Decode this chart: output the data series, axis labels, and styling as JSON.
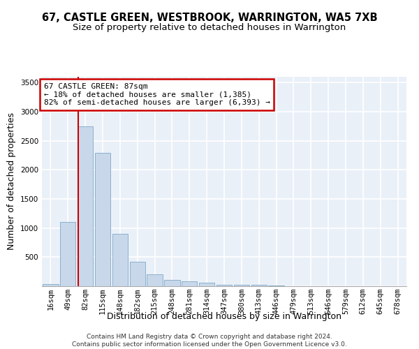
{
  "title_line1": "67, CASTLE GREEN, WESTBROOK, WARRINGTON, WA5 7XB",
  "title_line2": "Size of property relative to detached houses in Warrington",
  "xlabel": "Distribution of detached houses by size in Warrington",
  "ylabel": "Number of detached properties",
  "footnote": "Contains HM Land Registry data © Crown copyright and database right 2024.\nContains public sector information licensed under the Open Government Licence v3.0.",
  "annotation_line1": "67 CASTLE GREEN: 87sqm",
  "annotation_line2": "← 18% of detached houses are smaller (1,385)",
  "annotation_line3": "82% of semi-detached houses are larger (6,393) →",
  "bar_color": "#c8d8ea",
  "bar_edge_color": "#7fa8c8",
  "vline_color": "#cc0000",
  "annotation_box_edgecolor": "#cc0000",
  "background_color": "#eaf0f8",
  "grid_color": "#ffffff",
  "categories": [
    "16sqm",
    "49sqm",
    "82sqm",
    "115sqm",
    "148sqm",
    "182sqm",
    "215sqm",
    "248sqm",
    "281sqm",
    "314sqm",
    "347sqm",
    "380sqm",
    "413sqm",
    "446sqm",
    "479sqm",
    "513sqm",
    "546sqm",
    "579sqm",
    "612sqm",
    "645sqm",
    "678sqm"
  ],
  "values": [
    40,
    1100,
    2750,
    2290,
    895,
    420,
    200,
    110,
    80,
    55,
    30,
    20,
    22,
    8,
    4,
    2,
    1,
    1,
    0,
    0,
    0
  ],
  "ylim": [
    0,
    3600
  ],
  "yticks": [
    0,
    500,
    1000,
    1500,
    2000,
    2500,
    3000,
    3500
  ],
  "vline_x_index": 1.575,
  "title_fontsize": 10.5,
  "subtitle_fontsize": 9.5,
  "axis_label_fontsize": 9,
  "tick_fontsize": 7.5,
  "annotation_fontsize": 8,
  "footnote_fontsize": 6.5
}
